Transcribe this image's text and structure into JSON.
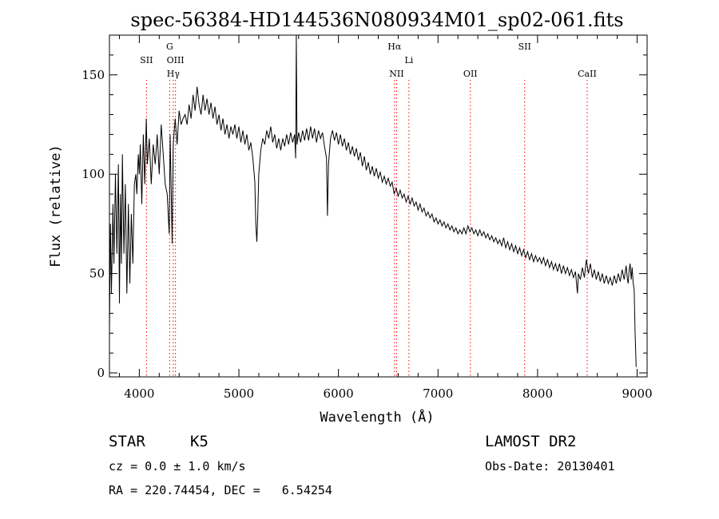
{
  "chart_data": {
    "type": "line",
    "title": "spec-56384-HD144536N080934M01_sp02-061.fits",
    "xlabel": "Wavelength (Å)",
    "ylabel": "Flux (relative)",
    "xlim": [
      3700,
      9100
    ],
    "ylim": [
      -2,
      170
    ],
    "xticks": [
      4000,
      5000,
      6000,
      7000,
      8000,
      9000
    ],
    "yticks": [
      0,
      50,
      100,
      150
    ],
    "grid": false,
    "line_color": "#000000",
    "marker_color": "#ff0000",
    "series": [
      {
        "points": [
          [
            3700,
            20
          ],
          [
            3710,
            75
          ],
          [
            3720,
            40
          ],
          [
            3735,
            85
          ],
          [
            3745,
            55
          ],
          [
            3760,
            100
          ],
          [
            3775,
            60
          ],
          [
            3790,
            105
          ],
          [
            3800,
            35
          ],
          [
            3810,
            90
          ],
          [
            3820,
            55
          ],
          [
            3830,
            110
          ],
          [
            3845,
            60
          ],
          [
            3860,
            95
          ],
          [
            3875,
            40
          ],
          [
            3890,
            85
          ],
          [
            3905,
            45
          ],
          [
            3920,
            80
          ],
          [
            3935,
            55
          ],
          [
            3950,
            95
          ],
          [
            3965,
            100
          ],
          [
            3975,
            90
          ],
          [
            3990,
            110
          ],
          [
            4000,
            100
          ],
          [
            4010,
            115
          ],
          [
            4025,
            85
          ],
          [
            4040,
            120
          ],
          [
            4055,
            95
          ],
          [
            4070,
            128
          ],
          [
            4080,
            105
          ],
          [
            4100,
            118
          ],
          [
            4120,
            95
          ],
          [
            4140,
            115
          ],
          [
            4160,
            105
          ],
          [
            4180,
            120
          ],
          [
            4200,
            100
          ],
          [
            4220,
            125
          ],
          [
            4240,
            110
          ],
          [
            4260,
            95
          ],
          [
            4280,
            90
          ],
          [
            4300,
            70
          ],
          [
            4310,
            120
          ],
          [
            4330,
            65
          ],
          [
            4340,
            115
          ],
          [
            4360,
            128
          ],
          [
            4380,
            115
          ],
          [
            4400,
            132
          ],
          [
            4420,
            125
          ],
          [
            4440,
            128
          ],
          [
            4460,
            130
          ],
          [
            4480,
            125
          ],
          [
            4500,
            135
          ],
          [
            4520,
            128
          ],
          [
            4540,
            140
          ],
          [
            4560,
            132
          ],
          [
            4580,
            144
          ],
          [
            4600,
            135
          ],
          [
            4620,
            130
          ],
          [
            4640,
            140
          ],
          [
            4660,
            132
          ],
          [
            4680,
            138
          ],
          [
            4700,
            130
          ],
          [
            4720,
            136
          ],
          [
            4740,
            128
          ],
          [
            4760,
            134
          ],
          [
            4780,
            125
          ],
          [
            4800,
            130
          ],
          [
            4820,
            122
          ],
          [
            4840,
            128
          ],
          [
            4860,
            120
          ],
          [
            4880,
            125
          ],
          [
            4900,
            118
          ],
          [
            4920,
            124
          ],
          [
            4940,
            120
          ],
          [
            4960,
            125
          ],
          [
            4980,
            118
          ],
          [
            5000,
            124
          ],
          [
            5020,
            116
          ],
          [
            5040,
            122
          ],
          [
            5060,
            115
          ],
          [
            5080,
            120
          ],
          [
            5100,
            112
          ],
          [
            5120,
            116
          ],
          [
            5140,
            108
          ],
          [
            5160,
            96
          ],
          [
            5170,
            75
          ],
          [
            5180,
            66
          ],
          [
            5190,
            80
          ],
          [
            5200,
            100
          ],
          [
            5220,
            112
          ],
          [
            5240,
            118
          ],
          [
            5260,
            115
          ],
          [
            5280,
            122
          ],
          [
            5300,
            118
          ],
          [
            5320,
            124
          ],
          [
            5340,
            116
          ],
          [
            5360,
            120
          ],
          [
            5380,
            113
          ],
          [
            5400,
            118
          ],
          [
            5420,
            112
          ],
          [
            5440,
            118
          ],
          [
            5460,
            114
          ],
          [
            5480,
            120
          ],
          [
            5500,
            115
          ],
          [
            5520,
            121
          ],
          [
            5540,
            116
          ],
          [
            5560,
            120
          ],
          [
            5570,
            108
          ],
          [
            5577,
            170
          ],
          [
            5584,
            115
          ],
          [
            5600,
            121
          ],
          [
            5620,
            116
          ],
          [
            5640,
            122
          ],
          [
            5660,
            117
          ],
          [
            5680,
            123
          ],
          [
            5700,
            117
          ],
          [
            5720,
            124
          ],
          [
            5740,
            118
          ],
          [
            5760,
            123
          ],
          [
            5780,
            116
          ],
          [
            5800,
            122
          ],
          [
            5820,
            118
          ],
          [
            5840,
            121
          ],
          [
            5860,
            114
          ],
          [
            5880,
            108
          ],
          [
            5890,
            79
          ],
          [
            5900,
            105
          ],
          [
            5920,
            118
          ],
          [
            5940,
            122
          ],
          [
            5960,
            117
          ],
          [
            5980,
            121
          ],
          [
            6000,
            115
          ],
          [
            6020,
            120
          ],
          [
            6040,
            114
          ],
          [
            6060,
            118
          ],
          [
            6080,
            112
          ],
          [
            6100,
            116
          ],
          [
            6120,
            110
          ],
          [
            6140,
            114
          ],
          [
            6160,
            109
          ],
          [
            6180,
            113
          ],
          [
            6200,
            107
          ],
          [
            6220,
            111
          ],
          [
            6240,
            104
          ],
          [
            6260,
            109
          ],
          [
            6280,
            102
          ],
          [
            6300,
            106
          ],
          [
            6320,
            100
          ],
          [
            6340,
            104
          ],
          [
            6360,
            99
          ],
          [
            6380,
            103
          ],
          [
            6400,
            98
          ],
          [
            6420,
            101
          ],
          [
            6440,
            96
          ],
          [
            6460,
            99
          ],
          [
            6480,
            95
          ],
          [
            6500,
            98
          ],
          [
            6520,
            94
          ],
          [
            6540,
            96
          ],
          [
            6560,
            90
          ],
          [
            6580,
            93
          ],
          [
            6600,
            89
          ],
          [
            6620,
            92
          ],
          [
            6640,
            88
          ],
          [
            6660,
            90
          ],
          [
            6680,
            86
          ],
          [
            6700,
            89
          ],
          [
            6720,
            85
          ],
          [
            6740,
            88
          ],
          [
            6760,
            84
          ],
          [
            6780,
            86
          ],
          [
            6800,
            82
          ],
          [
            6820,
            85
          ],
          [
            6840,
            81
          ],
          [
            6860,
            83
          ],
          [
            6880,
            79
          ],
          [
            6900,
            81
          ],
          [
            6920,
            78
          ],
          [
            6940,
            80
          ],
          [
            6960,
            76
          ],
          [
            6980,
            78
          ],
          [
            7000,
            75
          ],
          [
            7020,
            77
          ],
          [
            7040,
            74
          ],
          [
            7060,
            76
          ],
          [
            7080,
            73
          ],
          [
            7100,
            75
          ],
          [
            7120,
            72
          ],
          [
            7140,
            74
          ],
          [
            7160,
            71
          ],
          [
            7180,
            73
          ],
          [
            7200,
            70
          ],
          [
            7220,
            72
          ],
          [
            7240,
            70
          ],
          [
            7260,
            73
          ],
          [
            7280,
            70
          ],
          [
            7300,
            74
          ],
          [
            7320,
            71
          ],
          [
            7340,
            73
          ],
          [
            7360,
            70
          ],
          [
            7380,
            72
          ],
          [
            7400,
            69
          ],
          [
            7420,
            72
          ],
          [
            7440,
            69
          ],
          [
            7460,
            71
          ],
          [
            7480,
            68
          ],
          [
            7500,
            70
          ],
          [
            7520,
            67
          ],
          [
            7540,
            69
          ],
          [
            7560,
            66
          ],
          [
            7580,
            68
          ],
          [
            7600,
            65
          ],
          [
            7620,
            67
          ],
          [
            7640,
            64
          ],
          [
            7660,
            68
          ],
          [
            7680,
            63
          ],
          [
            7700,
            66
          ],
          [
            7720,
            62
          ],
          [
            7740,
            65
          ],
          [
            7760,
            61
          ],
          [
            7780,
            64
          ],
          [
            7800,
            60
          ],
          [
            7820,
            63
          ],
          [
            7840,
            59
          ],
          [
            7860,
            62
          ],
          [
            7880,
            58
          ],
          [
            7900,
            61
          ],
          [
            7920,
            57
          ],
          [
            7940,
            60
          ],
          [
            7960,
            56
          ],
          [
            7980,
            59
          ],
          [
            8000,
            56
          ],
          [
            8020,
            58
          ],
          [
            8040,
            55
          ],
          [
            8060,
            58
          ],
          [
            8080,
            54
          ],
          [
            8100,
            57
          ],
          [
            8120,
            53
          ],
          [
            8140,
            56
          ],
          [
            8160,
            52
          ],
          [
            8180,
            55
          ],
          [
            8200,
            51
          ],
          [
            8220,
            55
          ],
          [
            8240,
            50
          ],
          [
            8260,
            54
          ],
          [
            8280,
            50
          ],
          [
            8300,
            53
          ],
          [
            8320,
            49
          ],
          [
            8340,
            52
          ],
          [
            8360,
            48
          ],
          [
            8380,
            51
          ],
          [
            8400,
            40
          ],
          [
            8410,
            50
          ],
          [
            8430,
            47
          ],
          [
            8450,
            53
          ],
          [
            8470,
            48
          ],
          [
            8490,
            57
          ],
          [
            8510,
            50
          ],
          [
            8530,
            55
          ],
          [
            8550,
            48
          ],
          [
            8570,
            52
          ],
          [
            8590,
            47
          ],
          [
            8610,
            51
          ],
          [
            8630,
            46
          ],
          [
            8650,
            50
          ],
          [
            8670,
            45
          ],
          [
            8690,
            49
          ],
          [
            8710,
            45
          ],
          [
            8730,
            48
          ],
          [
            8750,
            44
          ],
          [
            8770,
            49
          ],
          [
            8790,
            45
          ],
          [
            8810,
            50
          ],
          [
            8830,
            46
          ],
          [
            8850,
            52
          ],
          [
            8870,
            47
          ],
          [
            8890,
            54
          ],
          [
            8900,
            48
          ],
          [
            8910,
            45
          ],
          [
            8920,
            52
          ],
          [
            8930,
            55
          ],
          [
            8940,
            47
          ],
          [
            8950,
            53
          ],
          [
            8960,
            45
          ],
          [
            8970,
            42
          ],
          [
            8980,
            20
          ],
          [
            8990,
            3
          ]
        ]
      }
    ],
    "spectral_lines": [
      {
        "label": "SII",
        "x": 4072,
        "row": 2
      },
      {
        "label": "G",
        "x": 4305,
        "row": 1
      },
      {
        "label": "Hγ",
        "x": 4341,
        "row": 3
      },
      {
        "label": "OIII",
        "x": 4363,
        "row": 2
      },
      {
        "label": "Hα",
        "x": 6563,
        "row": 1
      },
      {
        "label": "NII",
        "x": 6584,
        "row": 3
      },
      {
        "label": "Li",
        "x": 6708,
        "row": 2
      },
      {
        "label": "OII",
        "x": 7325,
        "row": 3
      },
      {
        "label": "SII",
        "x": 7870,
        "row": 1
      },
      {
        "label": "CaII",
        "x": 8498,
        "row": 3
      }
    ]
  },
  "info": {
    "object_class": "STAR",
    "subclass": "K5",
    "survey": "LAMOST DR2",
    "cz": "cz = 0.0 ± 1.0 km/s",
    "obs_date": "Obs-Date: 20130401",
    "coords": "RA = 220.74454, DEC =   6.54254"
  }
}
